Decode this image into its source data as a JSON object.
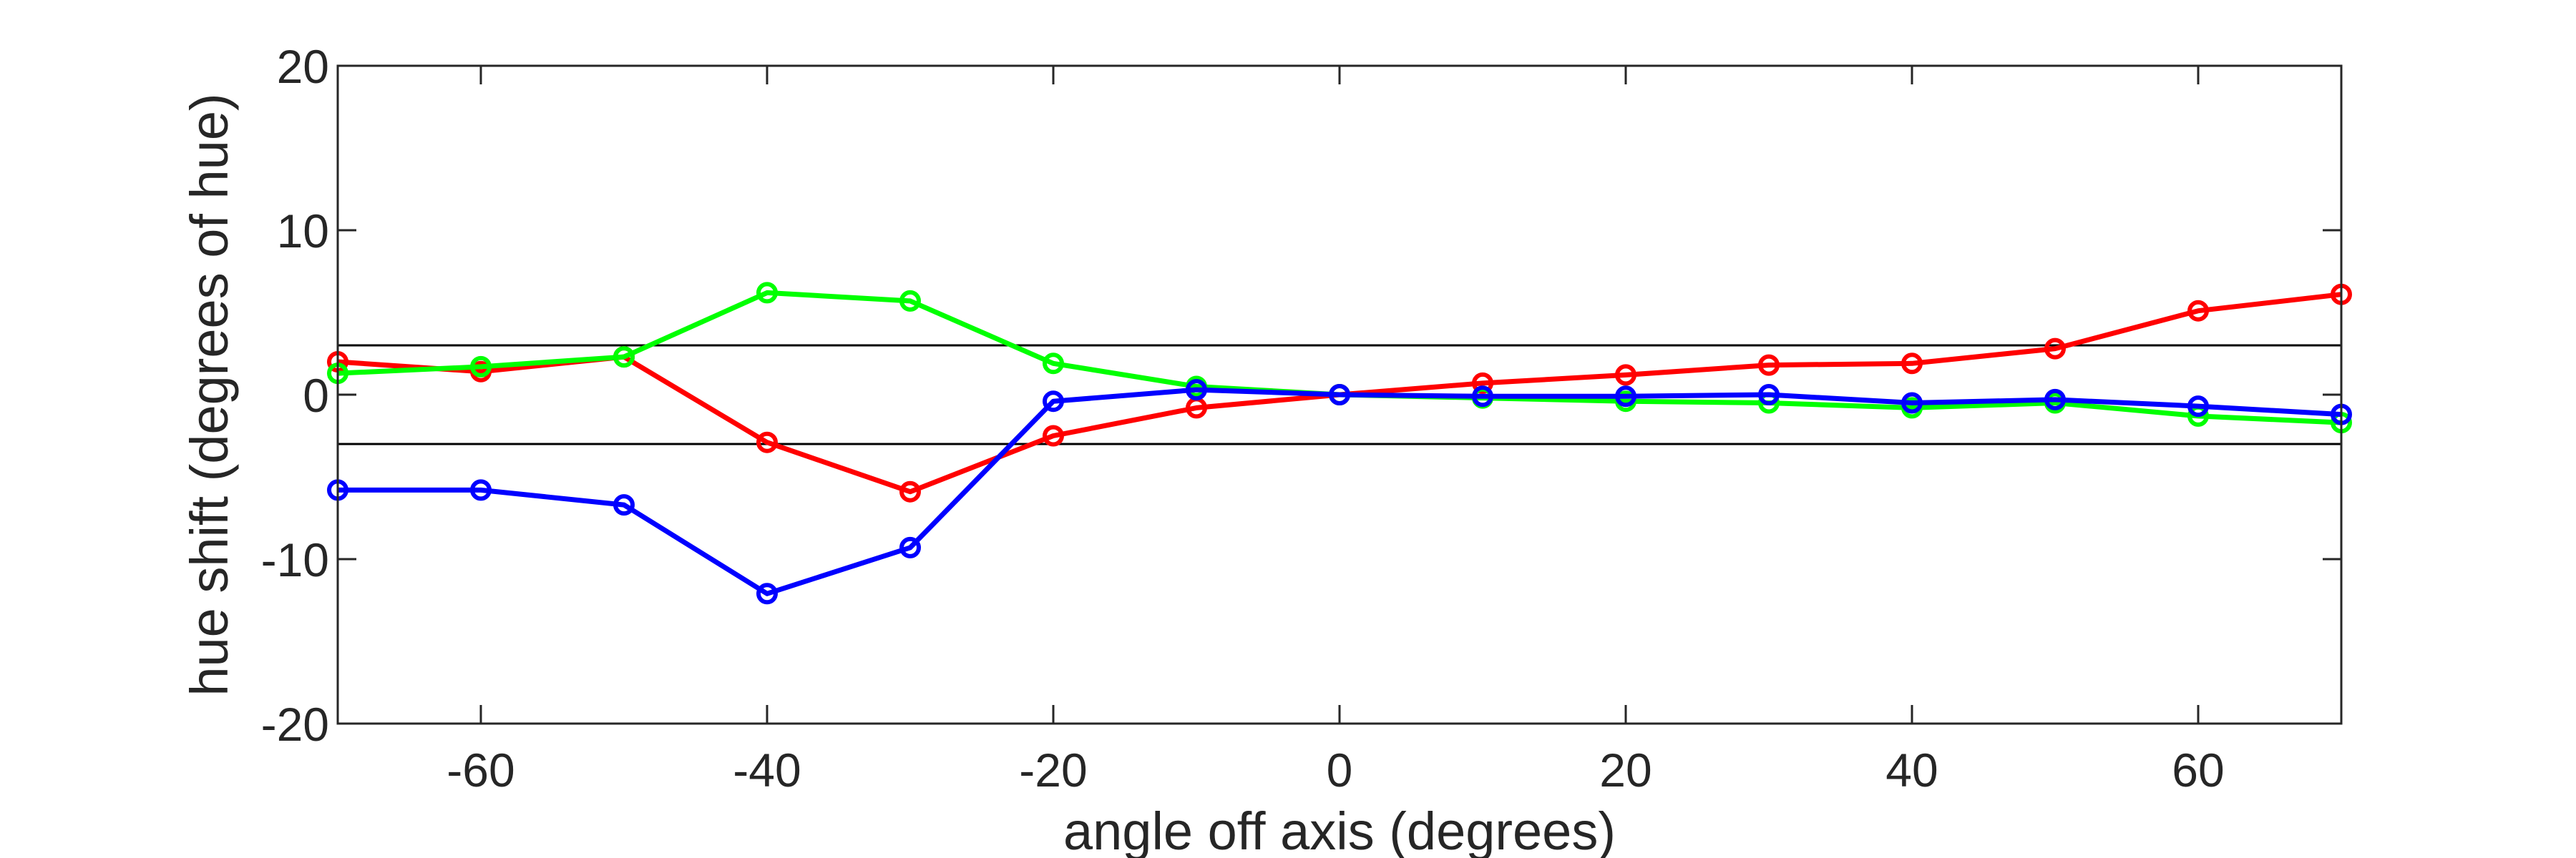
{
  "chart_data": {
    "type": "line",
    "xlabel": "angle off axis (degrees)",
    "ylabel": "hue shift (degrees of hue)",
    "xlim": [
      -70,
      70
    ],
    "ylim": [
      -20,
      20
    ],
    "x_ticks": [
      -60,
      -40,
      -20,
      0,
      20,
      40,
      60
    ],
    "x_tick_labels": [
      "-60",
      "-40",
      "-20",
      "0",
      "20",
      "40",
      "60"
    ],
    "y_ticks": [
      -20,
      -10,
      0,
      10,
      20
    ],
    "y_tick_labels": [
      "-20",
      "-10",
      "0",
      "10",
      "20"
    ],
    "reference_lines": [
      3,
      -3
    ],
    "grid": false,
    "x": [
      -70,
      -60,
      -50,
      -40,
      -30,
      -20,
      -10,
      0,
      10,
      20,
      30,
      40,
      50,
      60,
      70
    ],
    "series": [
      {
        "color": "#ff0000",
        "values": [
          2.0,
          1.4,
          2.3,
          -2.9,
          -5.9,
          -2.5,
          -0.8,
          0,
          0.7,
          1.2,
          1.8,
          1.9,
          2.8,
          5.1,
          6.1
        ]
      },
      {
        "color": "#00ff00",
        "values": [
          1.3,
          1.7,
          2.3,
          6.2,
          5.7,
          1.9,
          0.5,
          0,
          -0.2,
          -0.4,
          -0.5,
          -0.8,
          -0.5,
          -1.3,
          -1.7
        ]
      },
      {
        "color": "#0000ff",
        "values": [
          -5.8,
          -5.8,
          -6.7,
          -12.1,
          -9.3,
          -0.4,
          0.3,
          0,
          -0.1,
          -0.1,
          0.0,
          -0.5,
          -0.3,
          -0.7,
          -1.2
        ]
      }
    ]
  }
}
